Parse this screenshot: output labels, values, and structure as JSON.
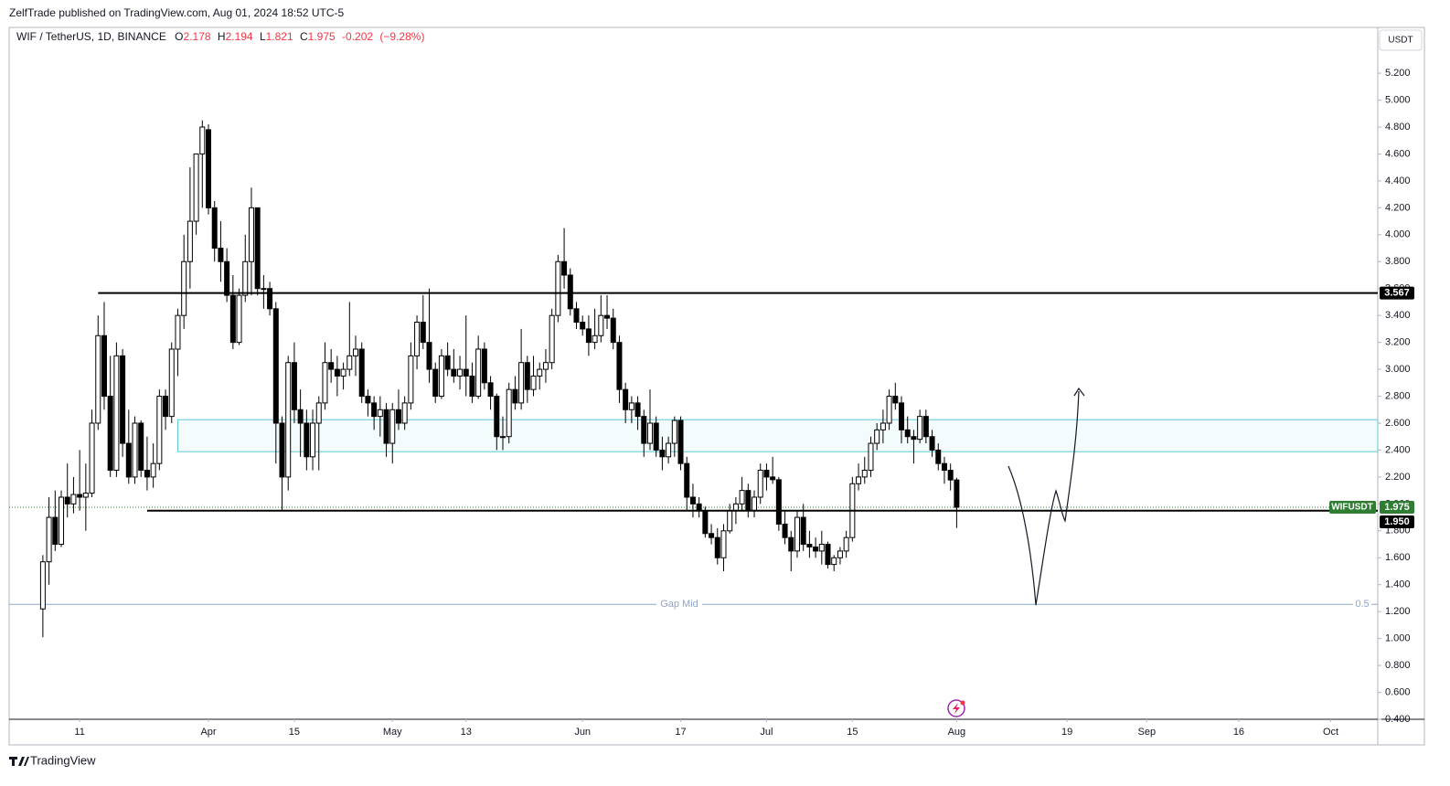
{
  "header": {
    "publisher": "ZelfTrade published on TradingView.com, Aug 01, 2024 18:52 UTC-5",
    "footer": "TradingView"
  },
  "chart_data": {
    "type": "candlestick",
    "legend": {
      "symbol": "WIF / TetherUS, 1D, BINANCE",
      "open_label": "O",
      "open": 2.178,
      "high_label": "H",
      "high": 2.194,
      "low_label": "L",
      "low": 1.821,
      "close_label": "C",
      "close": 1.975,
      "change": -0.202,
      "change_pct": "(−9.28%)"
    },
    "currency": "USDT",
    "up_color": "#ffffff",
    "down_color": "#000000",
    "wick_color": "#000000",
    "x": [
      "2024-03-05",
      "2024-03-06",
      "2024-03-07",
      "2024-03-08",
      "2024-03-09",
      "2024-03-10",
      "2024-03-11",
      "2024-03-12",
      "2024-03-13",
      "2024-03-14",
      "2024-03-15",
      "2024-03-16",
      "2024-03-17",
      "2024-03-18",
      "2024-03-19",
      "2024-03-20",
      "2024-03-21",
      "2024-03-22",
      "2024-03-23",
      "2024-03-24",
      "2024-03-25",
      "2024-03-26",
      "2024-03-27",
      "2024-03-28",
      "2024-03-29",
      "2024-03-30",
      "2024-03-31",
      "2024-04-01",
      "2024-04-02",
      "2024-04-03",
      "2024-04-04",
      "2024-04-05",
      "2024-04-06",
      "2024-04-07",
      "2024-04-08",
      "2024-04-09",
      "2024-04-10",
      "2024-04-11",
      "2024-04-12",
      "2024-04-13",
      "2024-04-14",
      "2024-04-15",
      "2024-04-16",
      "2024-04-17",
      "2024-04-18",
      "2024-04-19",
      "2024-04-20",
      "2024-04-21",
      "2024-04-22",
      "2024-04-23",
      "2024-04-24",
      "2024-04-25",
      "2024-04-26",
      "2024-04-27",
      "2024-04-28",
      "2024-04-29",
      "2024-04-30",
      "2024-05-01",
      "2024-05-02",
      "2024-05-03",
      "2024-05-04",
      "2024-05-05",
      "2024-05-06",
      "2024-05-07",
      "2024-05-08",
      "2024-05-09",
      "2024-05-10",
      "2024-05-11",
      "2024-05-12",
      "2024-05-13",
      "2024-05-14",
      "2024-05-15",
      "2024-05-16",
      "2024-05-17",
      "2024-05-18",
      "2024-05-19",
      "2024-05-20",
      "2024-05-21",
      "2024-05-22",
      "2024-05-23",
      "2024-05-24",
      "2024-05-25",
      "2024-05-26",
      "2024-05-27",
      "2024-05-28",
      "2024-05-29",
      "2024-05-30",
      "2024-05-31",
      "2024-06-01",
      "2024-06-02",
      "2024-06-03",
      "2024-06-04",
      "2024-06-05",
      "2024-06-06",
      "2024-06-07",
      "2024-06-08",
      "2024-06-09",
      "2024-06-10",
      "2024-06-11",
      "2024-06-12",
      "2024-06-13",
      "2024-06-14",
      "2024-06-15",
      "2024-06-16",
      "2024-06-17",
      "2024-06-18",
      "2024-06-19",
      "2024-06-20",
      "2024-06-21",
      "2024-06-22",
      "2024-06-23",
      "2024-06-24",
      "2024-06-25",
      "2024-06-26",
      "2024-06-27",
      "2024-06-28",
      "2024-06-29",
      "2024-06-30",
      "2024-07-01",
      "2024-07-02",
      "2024-07-03",
      "2024-07-04",
      "2024-07-05",
      "2024-07-06",
      "2024-07-07",
      "2024-07-08",
      "2024-07-09",
      "2024-07-10",
      "2024-07-11",
      "2024-07-12",
      "2024-07-13",
      "2024-07-14",
      "2024-07-15",
      "2024-07-16",
      "2024-07-17",
      "2024-07-18",
      "2024-07-19",
      "2024-07-20",
      "2024-07-21",
      "2024-07-22",
      "2024-07-23",
      "2024-07-24",
      "2024-07-25",
      "2024-07-26",
      "2024-07-27",
      "2024-07-28",
      "2024-07-29",
      "2024-07-30",
      "2024-07-31",
      "2024-08-01"
    ],
    "open": [
      1.22,
      1.57,
      1.9,
      1.7,
      2.05,
      2.0,
      2.07,
      2.05,
      2.08,
      2.6,
      3.25,
      2.8,
      2.25,
      3.1,
      2.45,
      2.2,
      2.6,
      2.25,
      2.2,
      2.3,
      2.8,
      2.65,
      3.15,
      3.4,
      3.8,
      4.1,
      4.6,
      4.78,
      4.2,
      3.9,
      3.8,
      3.55,
      3.2,
      3.55,
      3.8,
      4.2,
      3.6,
      3.6,
      3.45,
      2.6,
      2.2,
      3.05,
      2.7,
      2.6,
      2.35,
      2.6,
      2.75,
      3.05,
      3.0,
      2.95,
      3.0,
      3.1,
      3.15,
      2.8,
      2.75,
      2.65,
      2.7,
      2.45,
      2.7,
      2.6,
      2.75,
      3.1,
      3.35,
      3.2,
      3.0,
      2.8,
      3.1,
      3.0,
      2.95,
      3.0,
      2.95,
      2.8,
      3.15,
      2.9,
      2.8,
      2.5,
      2.5,
      2.85,
      2.75,
      3.05,
      2.85,
      2.95,
      3.0,
      3.05,
      3.4,
      3.8,
      3.7,
      3.45,
      3.35,
      3.3,
      3.2,
      3.25,
      3.4,
      3.38,
      3.2,
      2.85,
      2.7,
      2.75,
      2.65,
      2.45,
      2.6,
      2.4,
      2.35,
      2.45,
      2.62,
      2.3,
      2.05,
      2.0,
      1.95,
      1.78,
      1.75,
      1.6,
      1.8,
      1.95,
      2.0,
      2.1,
      1.95,
      2.05,
      2.25,
      2.2,
      2.18,
      1.85,
      1.75,
      1.65,
      1.9,
      1.7,
      1.68,
      1.65,
      1.7,
      1.55,
      1.6,
      1.65,
      1.75,
      2.15,
      2.2,
      2.25,
      2.45,
      2.55,
      2.6,
      2.8,
      2.75,
      2.55,
      2.5,
      2.48,
      2.65,
      2.5,
      2.4,
      2.3,
      2.25,
      2.178
    ],
    "high": [
      1.62,
      2.05,
      2.1,
      2.1,
      2.3,
      2.2,
      2.4,
      2.3,
      2.7,
      3.4,
      3.5,
      3.1,
      3.2,
      3.15,
      2.7,
      2.65,
      2.62,
      2.5,
      2.45,
      2.85,
      2.85,
      3.2,
      3.45,
      4.0,
      4.5,
      4.6,
      4.85,
      4.82,
      4.25,
      4.1,
      3.9,
      3.7,
      3.6,
      4.0,
      4.35,
      4.2,
      3.7,
      3.65,
      3.5,
      2.65,
      3.1,
      3.2,
      2.85,
      2.7,
      2.7,
      2.8,
      3.2,
      3.15,
      3.1,
      3.05,
      3.5,
      3.25,
      3.2,
      2.85,
      2.8,
      2.8,
      2.75,
      2.75,
      2.85,
      2.8,
      3.2,
      3.4,
      3.55,
      3.6,
      3.05,
      3.15,
      3.2,
      3.15,
      3.1,
      3.4,
      3.05,
      3.25,
      3.2,
      2.95,
      2.82,
      2.65,
      2.9,
      2.95,
      3.3,
      3.1,
      3.1,
      3.05,
      3.15,
      3.45,
      3.85,
      4.05,
      3.75,
      3.5,
      3.4,
      3.4,
      3.45,
      3.55,
      3.55,
      3.45,
      3.25,
      2.9,
      2.8,
      2.8,
      2.7,
      2.85,
      2.65,
      2.5,
      2.5,
      2.65,
      2.65,
      2.35,
      2.15,
      2.05,
      1.98,
      1.85,
      1.82,
      1.85,
      2.0,
      2.05,
      2.2,
      2.15,
      2.1,
      2.3,
      2.3,
      2.35,
      2.2,
      1.95,
      1.8,
      1.95,
      2.0,
      1.8,
      1.75,
      1.8,
      1.72,
      1.62,
      1.68,
      1.8,
      2.2,
      2.3,
      2.35,
      2.5,
      2.6,
      2.7,
      2.85,
      2.9,
      2.8,
      2.65,
      2.55,
      2.7,
      2.7,
      2.55,
      2.45,
      2.35,
      2.3,
      2.194
    ],
    "low": [
      1.01,
      1.4,
      1.65,
      1.68,
      1.9,
      1.93,
      1.95,
      1.8,
      2.05,
      2.55,
      2.7,
      2.2,
      2.2,
      2.35,
      2.15,
      2.15,
      2.2,
      2.1,
      2.12,
      2.25,
      2.55,
      2.6,
      2.95,
      3.3,
      3.6,
      4.0,
      4.2,
      4.15,
      3.8,
      3.65,
      3.5,
      3.15,
      3.18,
      3.5,
      3.55,
      3.55,
      3.45,
      3.4,
      2.3,
      1.95,
      2.1,
      2.6,
      2.35,
      2.25,
      2.25,
      2.25,
      2.7,
      2.9,
      2.8,
      2.85,
      2.95,
      2.95,
      2.75,
      2.65,
      2.55,
      2.5,
      2.35,
      2.3,
      2.55,
      2.55,
      2.7,
      3.0,
      3.15,
      2.9,
      2.75,
      2.78,
      2.95,
      2.9,
      2.85,
      2.8,
      2.75,
      2.78,
      2.85,
      2.7,
      2.4,
      2.4,
      2.45,
      2.7,
      2.7,
      2.75,
      2.8,
      2.85,
      2.9,
      3.0,
      3.35,
      3.6,
      3.4,
      3.3,
      3.25,
      3.1,
      3.15,
      3.2,
      3.3,
      3.15,
      2.75,
      2.6,
      2.6,
      2.55,
      2.35,
      2.4,
      2.35,
      2.25,
      2.3,
      2.35,
      2.25,
      1.95,
      1.9,
      1.9,
      1.75,
      1.7,
      1.55,
      1.5,
      1.78,
      1.85,
      1.95,
      1.9,
      1.9,
      2.0,
      2.1,
      2.15,
      1.8,
      1.7,
      1.5,
      1.6,
      1.65,
      1.6,
      1.6,
      1.55,
      1.52,
      1.5,
      1.55,
      1.6,
      1.72,
      2.1,
      2.15,
      2.2,
      2.4,
      2.45,
      2.55,
      2.7,
      2.45,
      2.45,
      2.3,
      2.45,
      2.45,
      2.35,
      2.25,
      2.15,
      2.1,
      1.821
    ],
    "close": [
      1.57,
      1.9,
      1.7,
      2.05,
      2.0,
      2.07,
      2.05,
      2.08,
      2.6,
      3.25,
      2.8,
      2.25,
      3.1,
      2.45,
      2.2,
      2.6,
      2.25,
      2.2,
      2.3,
      2.8,
      2.65,
      3.15,
      3.4,
      3.8,
      4.1,
      4.6,
      4.8,
      4.2,
      3.9,
      3.8,
      3.55,
      3.2,
      3.55,
      3.8,
      4.2,
      3.6,
      3.6,
      3.45,
      2.6,
      2.2,
      3.05,
      2.7,
      2.6,
      2.35,
      2.6,
      2.75,
      3.05,
      3.0,
      2.95,
      3.0,
      3.1,
      3.15,
      2.8,
      2.75,
      2.65,
      2.7,
      2.45,
      2.7,
      2.6,
      2.75,
      3.1,
      3.35,
      3.2,
      3.0,
      2.8,
      3.1,
      3.0,
      2.95,
      3.0,
      2.95,
      2.8,
      3.15,
      2.9,
      2.8,
      2.5,
      2.5,
      2.85,
      2.75,
      3.05,
      2.85,
      2.95,
      3.0,
      3.05,
      3.4,
      3.8,
      3.7,
      3.45,
      3.35,
      3.3,
      3.2,
      3.25,
      3.4,
      3.38,
      3.2,
      2.85,
      2.7,
      2.75,
      2.65,
      2.45,
      2.6,
      2.4,
      2.35,
      2.45,
      2.62,
      2.3,
      2.05,
      2.0,
      1.95,
      1.78,
      1.75,
      1.6,
      1.8,
      1.95,
      2.0,
      2.1,
      1.95,
      2.05,
      2.25,
      2.2,
      2.18,
      1.85,
      1.75,
      1.65,
      1.9,
      1.7,
      1.68,
      1.65,
      1.7,
      1.55,
      1.6,
      1.65,
      1.75,
      2.15,
      2.2,
      2.25,
      2.45,
      2.55,
      2.6,
      2.8,
      2.75,
      2.55,
      2.5,
      2.48,
      2.65,
      2.5,
      2.4,
      2.3,
      2.25,
      2.178,
      1.975
    ],
    "xlim": [
      "2024-02-28T12:00Z",
      "2024-10-08T16:00Z"
    ],
    "xticks": [
      {
        "value": "2024-03-11",
        "label": "11"
      },
      {
        "value": "2024-04-01",
        "label": "Apr"
      },
      {
        "value": "2024-04-15",
        "label": "15"
      },
      {
        "value": "2024-05-01",
        "label": "May"
      },
      {
        "value": "2024-05-13",
        "label": "13"
      },
      {
        "value": "2024-06-01",
        "label": "Jun"
      },
      {
        "value": "2024-06-17",
        "label": "17"
      },
      {
        "value": "2024-07-01",
        "label": "Jul"
      },
      {
        "value": "2024-07-15",
        "label": "15"
      },
      {
        "value": "2024-08-01",
        "label": "Aug"
      },
      {
        "value": "2024-08-19",
        "label": "19"
      },
      {
        "value": "2024-09-01",
        "label": "Sep"
      },
      {
        "value": "2024-09-16",
        "label": "16"
      },
      {
        "value": "2024-10-01",
        "label": "Oct"
      }
    ],
    "ylim": [
      0.4,
      5.54
    ],
    "yticks": [
      {
        "value": 0.4,
        "label": "0.400"
      },
      {
        "value": 0.6,
        "label": "0.600"
      },
      {
        "value": 0.8,
        "label": "0.800"
      },
      {
        "value": 1.0,
        "label": "1.000"
      },
      {
        "value": 1.2,
        "label": "1.200"
      },
      {
        "value": 1.4,
        "label": "1.400"
      },
      {
        "value": 1.6,
        "label": "1.600"
      },
      {
        "value": 1.8,
        "label": "1.800"
      },
      {
        "value": 2.0,
        "label": "2.000"
      },
      {
        "value": 2.2,
        "label": "2.200"
      },
      {
        "value": 2.4,
        "label": "2.400"
      },
      {
        "value": 2.6,
        "label": "2.600"
      },
      {
        "value": 2.8,
        "label": "2.800"
      },
      {
        "value": 3.0,
        "label": "3.000"
      },
      {
        "value": 3.2,
        "label": "3.200"
      },
      {
        "value": 3.4,
        "label": "3.400"
      },
      {
        "value": 3.6,
        "label": "3.600"
      },
      {
        "value": 3.8,
        "label": "3.800"
      },
      {
        "value": 4.0,
        "label": "4.000"
      },
      {
        "value": 4.2,
        "label": "4.200"
      },
      {
        "value": 4.4,
        "label": "4.400"
      },
      {
        "value": 4.6,
        "label": "4.600"
      },
      {
        "value": 4.8,
        "label": "4.800"
      },
      {
        "value": 5.0,
        "label": "5.000"
      },
      {
        "value": 5.2,
        "label": "5.200"
      }
    ],
    "grid": false,
    "levels": [
      {
        "value": 3.567,
        "start": "2024-03-14",
        "color": "#000000"
      },
      {
        "value": {
          "value": 1.95,
          "label": "1.950"
        },
        "start": "2024-03-22",
        "color": "#000000"
      }
    ],
    "zone": {
      "top": 2.626,
      "bottom": 2.388,
      "start": "2024-03-27",
      "color": "#5ec8d8"
    },
    "gap_mid": {
      "value": 1.254,
      "label": "Gap Mid",
      "ratio": 0.5,
      "color": "#8fa6c8"
    },
    "last_price": {
      "name": "WIFUSDT",
      "value": 1.975,
      "color": "#2e7d32"
    }
  }
}
